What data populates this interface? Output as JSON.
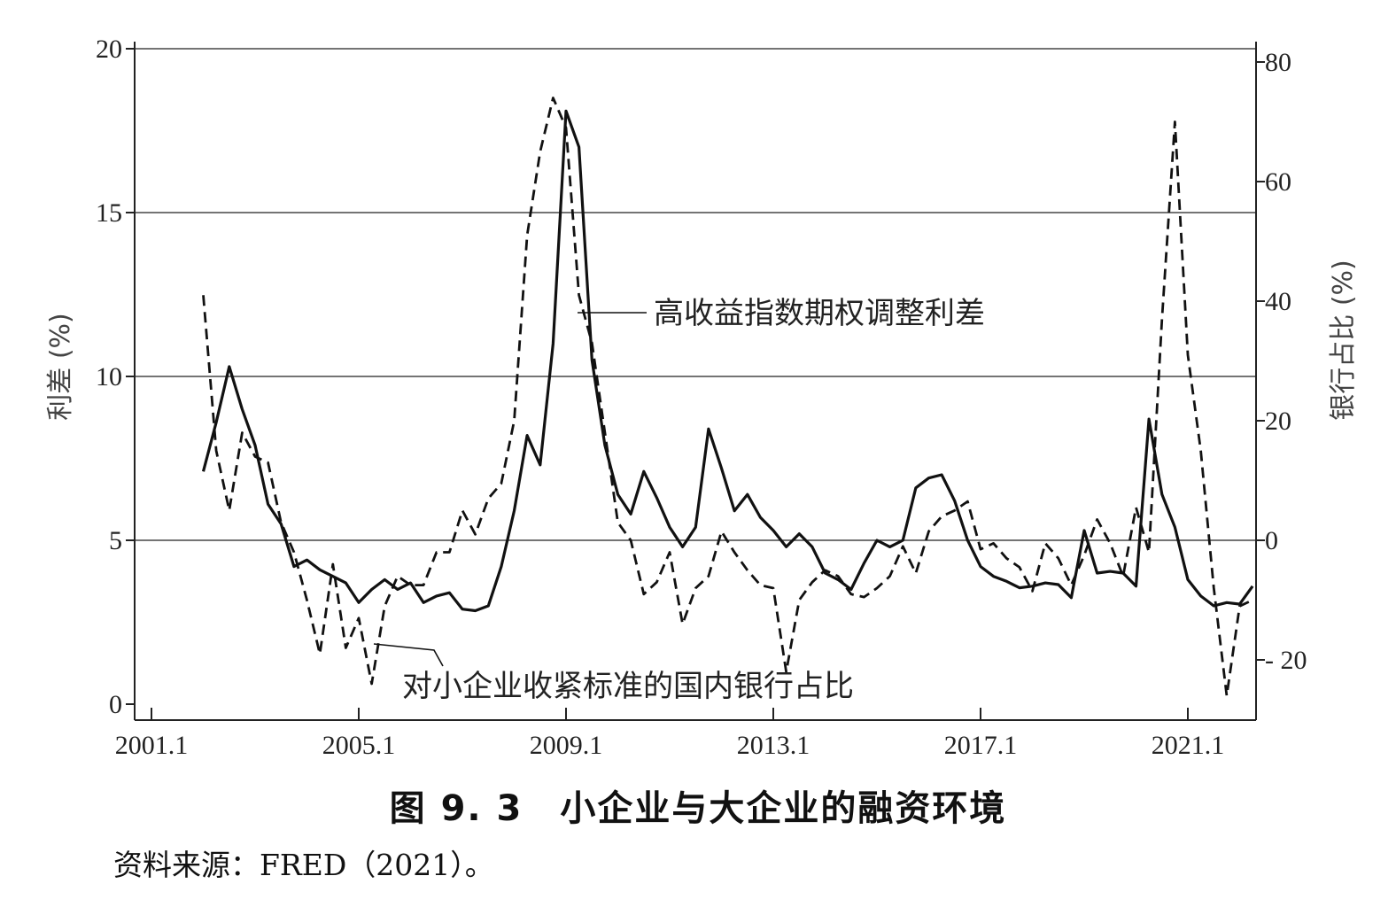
{
  "figure": {
    "caption": "图 9. 3　小企业与大企业的融资环境",
    "source": "资料来源：FRED（2021）。"
  },
  "chart_data": {
    "type": "line",
    "title": "",
    "xlabel": "",
    "ylabel": "利差 (%)",
    "y2label": "银行占比 (%)",
    "xlim": [
      2000.6,
      2022.4
    ],
    "ylim": [
      -0.5,
      20
    ],
    "y2lim": [
      -32,
      80
    ],
    "x_ticks": [
      {
        "value": 2001,
        "label": "2001.1"
      },
      {
        "value": 2005,
        "label": "2005.1"
      },
      {
        "value": 2009,
        "label": "2009.1"
      },
      {
        "value": 2013,
        "label": "2013.1"
      },
      {
        "value": 2017,
        "label": "2017.1"
      },
      {
        "value": 2021,
        "label": "2021.1"
      }
    ],
    "y_ticks": [
      {
        "value": 0,
        "label": "0"
      },
      {
        "value": 5,
        "label": "5"
      },
      {
        "value": 10,
        "label": "10"
      },
      {
        "value": 15,
        "label": "15"
      },
      {
        "value": 20,
        "label": "20"
      }
    ],
    "y2_ticks": [
      {
        "value": -20,
        "label": "- 20"
      },
      {
        "value": 0,
        "label": "0"
      },
      {
        "value": 20,
        "label": "20"
      },
      {
        "value": 40,
        "label": "40"
      },
      {
        "value": 60,
        "label": "60"
      },
      {
        "value": 80,
        "label": "80"
      }
    ],
    "grid_y": [
      5,
      10,
      15,
      20
    ],
    "series": [
      {
        "name": "高收益指数期权调整利差",
        "axis": "left",
        "style": "solid",
        "points": [
          [
            2002.0,
            7.1
          ],
          [
            2002.25,
            8.6
          ],
          [
            2002.5,
            10.3
          ],
          [
            2002.75,
            9.0
          ],
          [
            2003.0,
            7.9
          ],
          [
            2003.25,
            6.1
          ],
          [
            2003.5,
            5.5
          ],
          [
            2003.75,
            4.2
          ],
          [
            2004.0,
            4.4
          ],
          [
            2004.25,
            4.1
          ],
          [
            2004.5,
            3.9
          ],
          [
            2004.75,
            3.7
          ],
          [
            2005.0,
            3.1
          ],
          [
            2005.25,
            3.5
          ],
          [
            2005.5,
            3.8
          ],
          [
            2005.75,
            3.5
          ],
          [
            2006.0,
            3.7
          ],
          [
            2006.25,
            3.1
          ],
          [
            2006.5,
            3.3
          ],
          [
            2006.75,
            3.4
          ],
          [
            2007.0,
            2.9
          ],
          [
            2007.25,
            2.85
          ],
          [
            2007.5,
            3.0
          ],
          [
            2007.75,
            4.2
          ],
          [
            2008.0,
            5.9
          ],
          [
            2008.25,
            8.2
          ],
          [
            2008.5,
            7.3
          ],
          [
            2008.75,
            11.0
          ],
          [
            2009.0,
            18.1
          ],
          [
            2009.25,
            17.0
          ],
          [
            2009.5,
            10.5
          ],
          [
            2009.75,
            7.9
          ],
          [
            2010.0,
            6.4
          ],
          [
            2010.25,
            5.8
          ],
          [
            2010.5,
            7.1
          ],
          [
            2010.75,
            6.3
          ],
          [
            2011.0,
            5.4
          ],
          [
            2011.25,
            4.8
          ],
          [
            2011.5,
            5.4
          ],
          [
            2011.75,
            8.4
          ],
          [
            2012.0,
            7.2
          ],
          [
            2012.25,
            5.9
          ],
          [
            2012.5,
            6.4
          ],
          [
            2012.75,
            5.7
          ],
          [
            2013.0,
            5.3
          ],
          [
            2013.25,
            4.8
          ],
          [
            2013.5,
            5.2
          ],
          [
            2013.75,
            4.8
          ],
          [
            2014.0,
            4.0
          ],
          [
            2014.25,
            3.8
          ],
          [
            2014.5,
            3.5
          ],
          [
            2014.75,
            4.3
          ],
          [
            2015.0,
            5.0
          ],
          [
            2015.25,
            4.8
          ],
          [
            2015.5,
            5.0
          ],
          [
            2015.75,
            6.6
          ],
          [
            2016.0,
            6.9
          ],
          [
            2016.25,
            7.0
          ],
          [
            2016.5,
            6.2
          ],
          [
            2016.75,
            5.0
          ],
          [
            2017.0,
            4.2
          ],
          [
            2017.25,
            3.9
          ],
          [
            2017.5,
            3.75
          ],
          [
            2017.75,
            3.55
          ],
          [
            2018.0,
            3.6
          ],
          [
            2018.25,
            3.7
          ],
          [
            2018.5,
            3.65
          ],
          [
            2018.75,
            3.25
          ],
          [
            2019.0,
            5.3
          ],
          [
            2019.25,
            4.0
          ],
          [
            2019.5,
            4.05
          ],
          [
            2019.75,
            4.0
          ],
          [
            2020.0,
            3.6
          ],
          [
            2020.25,
            8.7
          ],
          [
            2020.5,
            6.4
          ],
          [
            2020.75,
            5.4
          ],
          [
            2021.0,
            3.8
          ],
          [
            2021.25,
            3.3
          ],
          [
            2021.5,
            3.0
          ],
          [
            2021.75,
            3.1
          ],
          [
            2022.0,
            3.05
          ],
          [
            2022.25,
            3.6
          ]
        ]
      },
      {
        "name": "对小企业收紧标准的国内银行占比",
        "axis": "right",
        "style": "dashed",
        "points": [
          [
            2002.0,
            41
          ],
          [
            2002.25,
            15
          ],
          [
            2002.5,
            5
          ],
          [
            2002.75,
            18
          ],
          [
            2003.0,
            14
          ],
          [
            2003.25,
            13
          ],
          [
            2003.5,
            3
          ],
          [
            2003.75,
            -2
          ],
          [
            2004.0,
            -10
          ],
          [
            2004.25,
            -19
          ],
          [
            2004.5,
            -4
          ],
          [
            2004.75,
            -18
          ],
          [
            2005.0,
            -13
          ],
          [
            2005.25,
            -24
          ],
          [
            2005.5,
            -11
          ],
          [
            2005.75,
            -6
          ],
          [
            2006.0,
            -7.5
          ],
          [
            2006.25,
            -7.5
          ],
          [
            2006.5,
            -2
          ],
          [
            2006.75,
            -2
          ],
          [
            2007.0,
            5
          ],
          [
            2007.25,
            1
          ],
          [
            2007.5,
            7
          ],
          [
            2007.75,
            9.5
          ],
          [
            2008.0,
            20
          ],
          [
            2008.25,
            51
          ],
          [
            2008.5,
            65
          ],
          [
            2008.75,
            74
          ],
          [
            2009.0,
            69
          ],
          [
            2009.25,
            41
          ],
          [
            2009.5,
            33
          ],
          [
            2009.75,
            18
          ],
          [
            2010.0,
            3
          ],
          [
            2010.25,
            0
          ],
          [
            2010.5,
            -9
          ],
          [
            2010.75,
            -7
          ],
          [
            2011.0,
            -2
          ],
          [
            2011.25,
            -14
          ],
          [
            2011.5,
            -8
          ],
          [
            2011.75,
            -6
          ],
          [
            2012.0,
            1.5
          ],
          [
            2012.25,
            -2
          ],
          [
            2012.5,
            -5
          ],
          [
            2012.75,
            -7.5
          ],
          [
            2013.0,
            -8
          ],
          [
            2013.25,
            -22
          ],
          [
            2013.5,
            -10
          ],
          [
            2013.75,
            -7
          ],
          [
            2014.0,
            -5
          ],
          [
            2014.25,
            -6
          ],
          [
            2014.5,
            -9
          ],
          [
            2014.75,
            -9.5
          ],
          [
            2015.0,
            -8
          ],
          [
            2015.25,
            -6
          ],
          [
            2015.5,
            -1
          ],
          [
            2015.75,
            -5.5
          ],
          [
            2016.0,
            1.5
          ],
          [
            2016.25,
            4
          ],
          [
            2016.5,
            5
          ],
          [
            2016.75,
            6.5
          ],
          [
            2017.0,
            -1.5
          ],
          [
            2017.25,
            -0.5
          ],
          [
            2017.5,
            -3
          ],
          [
            2017.75,
            -4.5
          ],
          [
            2018.0,
            -8.5
          ],
          [
            2018.25,
            -0.5
          ],
          [
            2018.5,
            -3
          ],
          [
            2018.75,
            -7.5
          ],
          [
            2019.0,
            -2.5
          ],
          [
            2019.25,
            3.5
          ],
          [
            2019.5,
            -0.5
          ],
          [
            2019.75,
            -6
          ],
          [
            2020.0,
            5.5
          ],
          [
            2020.25,
            -2
          ],
          [
            2020.5,
            37
          ],
          [
            2020.75,
            70
          ],
          [
            2021.0,
            31
          ],
          [
            2021.25,
            15
          ],
          [
            2021.5,
            -8
          ],
          [
            2021.75,
            -26
          ],
          [
            2022.0,
            -11
          ],
          [
            2022.25,
            -10
          ]
        ]
      }
    ],
    "annotations": [
      {
        "text": "高收益指数期权调整利差",
        "series": 0
      },
      {
        "text": "对小企业收紧标准的国内银行占比",
        "series": 1
      }
    ]
  }
}
